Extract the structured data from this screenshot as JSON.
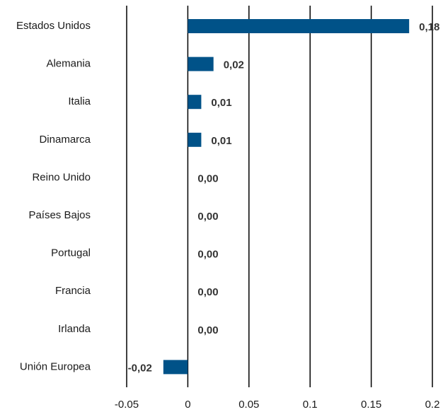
{
  "chart_data": {
    "type": "barh",
    "categories": [
      "Estados Unidos",
      "Alemania",
      "Italia",
      "Dinamarca",
      "Reino Unido",
      "Países Bajos",
      "Portugal",
      "Francia",
      "Irlanda",
      "Unión Europea"
    ],
    "values": [
      0.181,
      0.021,
      0.011,
      0.011,
      0,
      0,
      0,
      0,
      0,
      -0.02
    ],
    "value_labels": [
      "0,18",
      "0,02",
      "0,01",
      "0,01",
      "0,00",
      "0,00",
      "0,00",
      "0,00",
      "0,00",
      "-0,02"
    ],
    "color": "#005288",
    "xlim": [
      -0.05,
      0.2
    ],
    "xticks": [
      -0.05,
      0,
      0.05,
      0.1,
      0.15,
      0.2
    ],
    "grid": true
  }
}
